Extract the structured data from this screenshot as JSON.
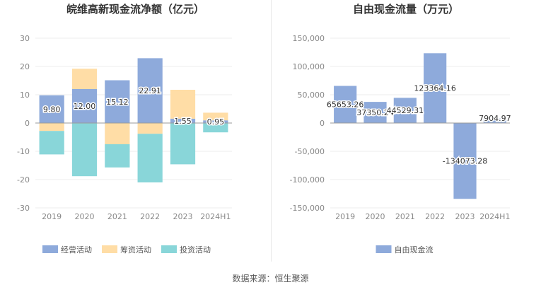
{
  "source_text": "数据来源：恒生聚源",
  "chart_data": [
    {
      "type": "bar",
      "stacked": true,
      "title": "皖维高新现金流净额（亿元）",
      "categories": [
        "2019",
        "2020",
        "2021",
        "2022",
        "2023",
        "2024H1"
      ],
      "ylim": [
        -30,
        30
      ],
      "yticks": [
        30,
        20,
        10,
        0,
        -10,
        -20,
        -30
      ],
      "ytick_labels": [
        "30",
        "20",
        "10",
        "0",
        "-10",
        "-20",
        "-30"
      ],
      "grid": true,
      "legend_position": "bottom",
      "series": [
        {
          "name": "经营活动",
          "color": "#8eaadb",
          "values": [
            9.8,
            12.0,
            15.12,
            22.91,
            1.55,
            0.95
          ],
          "labels": [
            "9.80",
            "12.00",
            "15.12",
            "22.91",
            "1.55",
            "0.95"
          ]
        },
        {
          "name": "筹资活动",
          "color": "#ffdda6",
          "values": [
            -2.8,
            7.2,
            -7.5,
            -3.8,
            10.2,
            2.7
          ]
        },
        {
          "name": "投资活动",
          "color": "#89d6d9",
          "values": [
            -8.3,
            -18.8,
            -8.2,
            -17.2,
            -14.6,
            -3.3
          ]
        }
      ]
    },
    {
      "type": "bar",
      "title": "自由现金流量（万元）",
      "categories": [
        "2019",
        "2020",
        "2021",
        "2022",
        "2023",
        "2024H1"
      ],
      "ylim": [
        -150000,
        150000
      ],
      "yticks": [
        150000,
        100000,
        50000,
        0,
        -50000,
        -100000,
        -150000
      ],
      "ytick_labels": [
        "150,000",
        "100,000",
        "50,000",
        "0",
        "-50,000",
        "-100,000",
        "-150,000"
      ],
      "grid": true,
      "legend_position": "bottom",
      "series": [
        {
          "name": "自由现金流",
          "color": "#8eaadb",
          "values": [
            65653.26,
            37350.24,
            44529.31,
            123364.16,
            -134073.28,
            7904.97
          ],
          "labels": [
            "65653.26",
            "37350.24",
            "44529.31",
            "123364.16",
            "-134073.28",
            "7904.97"
          ]
        }
      ]
    }
  ]
}
